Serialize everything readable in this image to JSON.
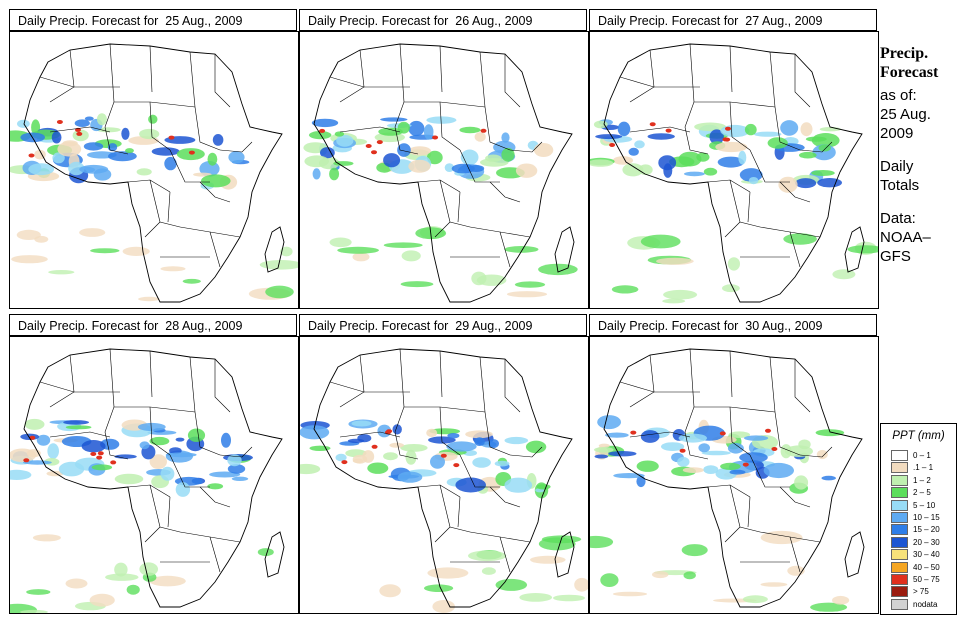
{
  "panels": [
    {
      "title": "Daily Precip. Forecast for  25 Aug., 2009"
    },
    {
      "title": "Daily Precip. Forecast for  26 Aug., 2009"
    },
    {
      "title": "Daily Precip. Forecast for  27 Aug., 2009"
    },
    {
      "title": "Daily Precip. Forecast for  28 Aug., 2009"
    },
    {
      "title": "Daily Precip. Forecast for  29 Aug., 2009"
    },
    {
      "title": "Daily Precip. Forecast for  30 Aug., 2009"
    }
  ],
  "side": {
    "heading1": "Precip.",
    "heading2": "Forecast",
    "asof": "as of:",
    "date1": "25 Aug.",
    "date2": "2009",
    "type1": "Daily",
    "type2": "Totals",
    "data1": "Data:",
    "data2": "NOAA–",
    "data3": "GFS"
  },
  "legend": {
    "title": "PPT (mm)",
    "items": [
      {
        "label": "0 – 1",
        "color": "#ffffff"
      },
      {
        "label": ".1 – 1",
        "color": "#f2dcc0"
      },
      {
        "label": "1 – 2",
        "color": "#bff0b0"
      },
      {
        "label": "2 – 5",
        "color": "#5cde5c"
      },
      {
        "label": "5 – 10",
        "color": "#98dcf6"
      },
      {
        "label": "10 – 15",
        "color": "#5eaaf2"
      },
      {
        "label": "15 – 20",
        "color": "#2f7ee8"
      },
      {
        "label": "20 – 30",
        "color": "#1c55d2"
      },
      {
        "label": "30 – 40",
        "color": "#f7e27a"
      },
      {
        "label": "40 – 50",
        "color": "#f5a623"
      },
      {
        "label": "50 – 75",
        "color": "#e0301e"
      },
      {
        "label": "> 75",
        "color": "#9b1d10"
      },
      {
        "label": "nodata",
        "color": "#d2d2d2"
      }
    ]
  }
}
